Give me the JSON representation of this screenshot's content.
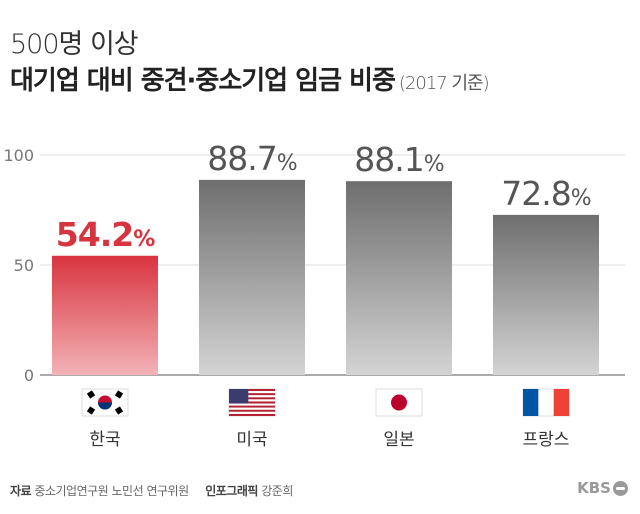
{
  "title": "500명 이상",
  "subtitle": "대기업 대비 중견·중소기업 임금 비중",
  "subtitle_note": "(2017 기준)",
  "chart_data": {
    "type": "bar",
    "categories": [
      "한국",
      "미국",
      "일본",
      "프랑스"
    ],
    "values": [
      54.2,
      88.7,
      88.1,
      72.8
    ],
    "value_labels": [
      "54.2",
      "88.7",
      "88.1",
      "72.8"
    ],
    "unit": "%",
    "yticks": [
      "0",
      "50",
      "100"
    ],
    "ylim": [
      0,
      100
    ],
    "grid": true,
    "flags": [
      "korea-flag",
      "usa-flag",
      "japan-flag",
      "france-flag"
    ],
    "colors": {
      "highlight": "#d9343f",
      "highlight_light": "#f2b3b7",
      "bar": "#6e6e6e",
      "bar_light": "#d4d4d4",
      "highlight_label": "#d6343e",
      "label": "#555555"
    }
  },
  "footer": {
    "source_label": "자료",
    "source": "중소기업연구원 노민선 연구위원",
    "credit_label": "인포그래픽",
    "credit": "강준희",
    "logo": "KBS"
  }
}
